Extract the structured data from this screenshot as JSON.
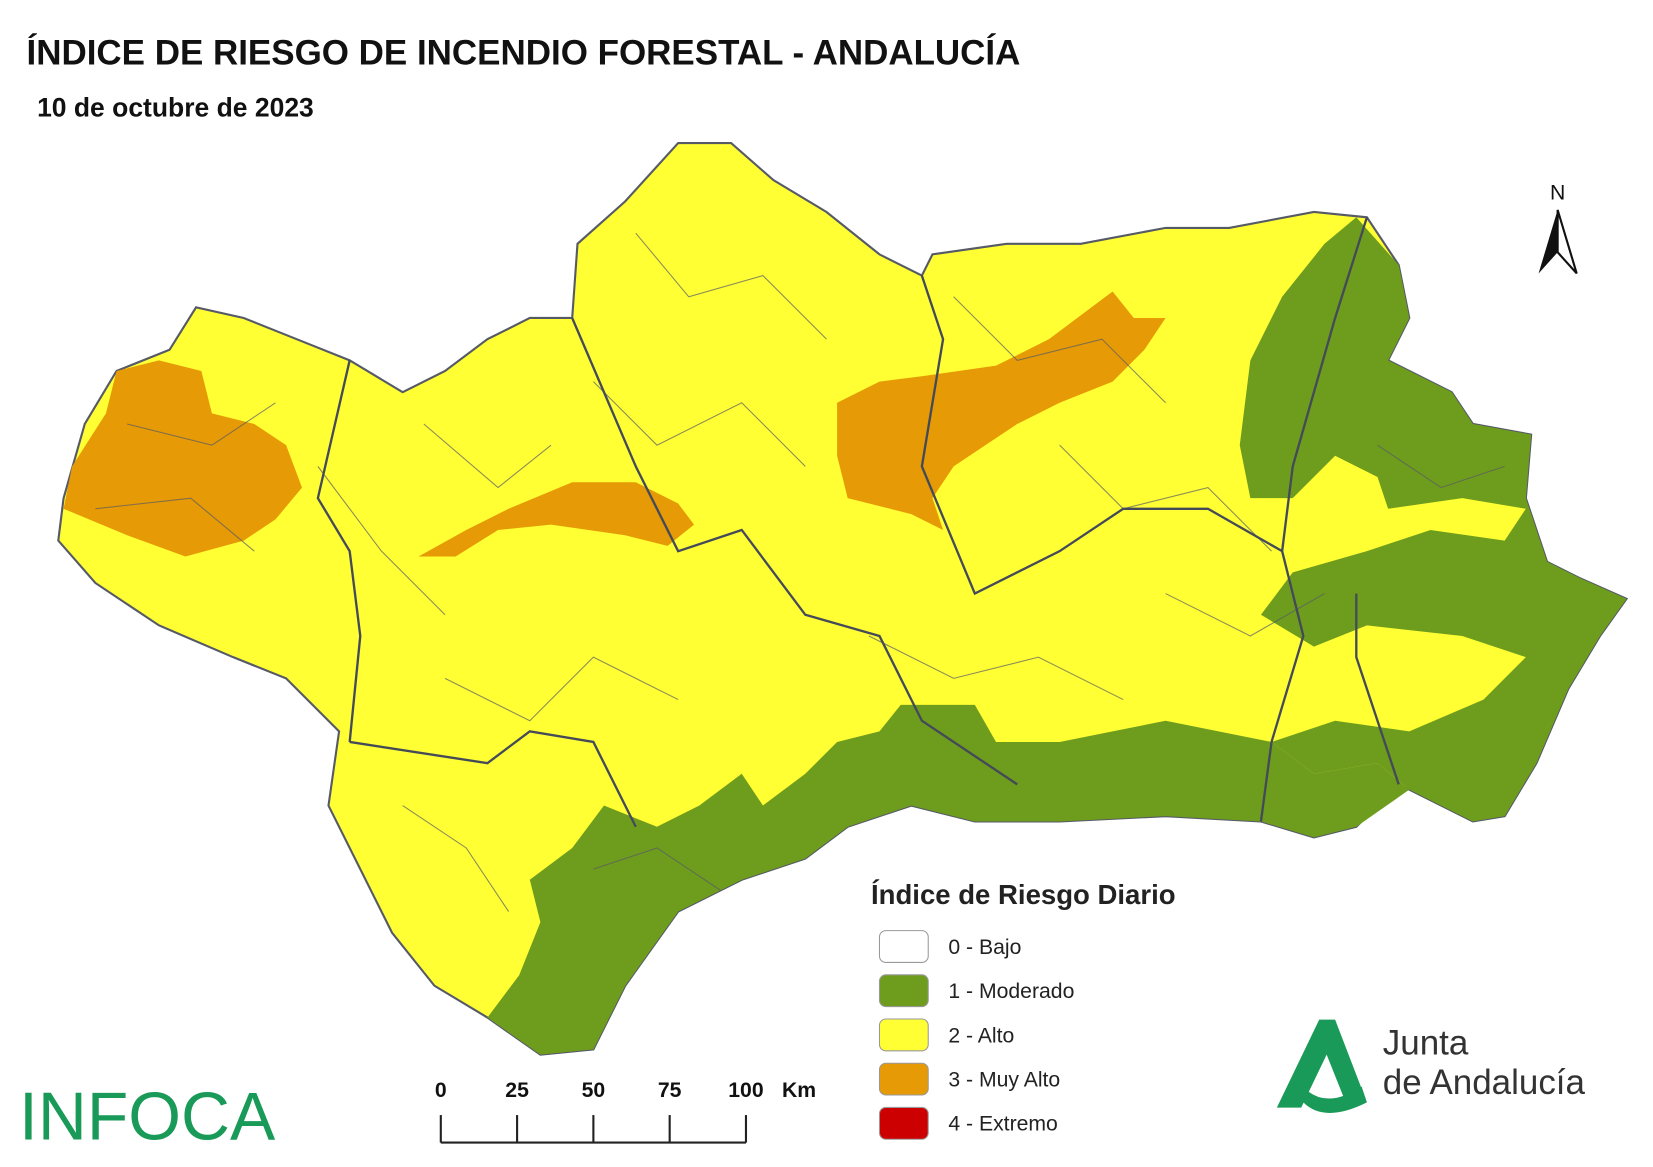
{
  "header": {
    "title": "ÍNDICE DE RIESGO DE INCENDIO FORESTAL - ANDALUCÍA",
    "date": "10 de octubre de 2023"
  },
  "north": "N",
  "legend": {
    "title": "Índice de Riesgo Diario",
    "items": [
      {
        "label": "0 - Bajo",
        "color": "#ffffff"
      },
      {
        "label": "1 - Moderado",
        "color": "#6e9d1e"
      },
      {
        "label": "2 - Alto",
        "color": "#ffff33"
      },
      {
        "label": "3 - Muy Alto",
        "color": "#e69a05"
      },
      {
        "label": "4 - Extremo",
        "color": "#cc0000"
      }
    ]
  },
  "scale": {
    "ticks": [
      0,
      25,
      50,
      75,
      100
    ],
    "unit": "Km"
  },
  "logos": {
    "infoca": "INFOCA",
    "junta_line1": "Junta",
    "junta_line2": "de Andalucía"
  }
}
